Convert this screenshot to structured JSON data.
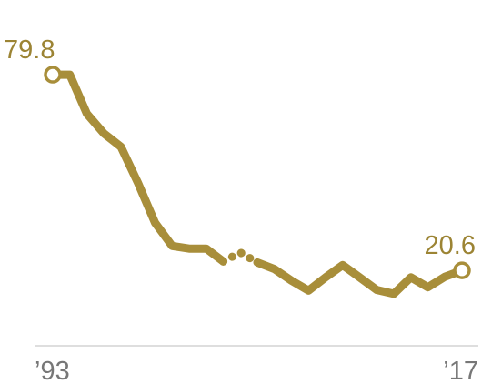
{
  "chart_data": {
    "type": "line",
    "title": "",
    "xlabel": "",
    "ylabel": "",
    "xlim": [
      1993,
      2017
    ],
    "ylim": [
      0,
      90
    ],
    "grid": false,
    "legend": "none",
    "color": "#a88e3a",
    "axis_color": "#d4d4d4",
    "x_tick_labels": [
      {
        "x": 1993,
        "label": "’93"
      },
      {
        "x": 2017,
        "label": "’17"
      }
    ],
    "series": [
      {
        "segments": [
          {
            "style": "solid",
            "x": [
              1993,
              1994,
              1995,
              1996,
              1997,
              1998,
              1999,
              2000,
              2001,
              2002,
              2003
            ],
            "y": [
              79.8,
              79.8,
              68.0,
              62.0,
              58.0,
              47.0,
              35.0,
              28.0,
              27.2,
              27.2,
              23.3
            ]
          },
          {
            "style": "dotted",
            "x": [
              2003,
              2004,
              2005
            ],
            "y": [
              23.3,
              26.0,
              23.0
            ]
          },
          {
            "style": "solid",
            "x": [
              2005,
              2006,
              2007,
              2008,
              2009,
              2010,
              2011,
              2012,
              2013,
              2014,
              2015,
              2016,
              2017
            ],
            "y": [
              23.0,
              21.0,
              17.5,
              14.5,
              18.5,
              22.2,
              18.5,
              14.7,
              13.5,
              18.5,
              15.5,
              18.7,
              20.6
            ]
          }
        ]
      }
    ],
    "annotations": [
      {
        "x": 1993,
        "y": 79.8,
        "label": "79.8"
      },
      {
        "x": 2017,
        "y": 20.6,
        "label": "20.6"
      }
    ]
  }
}
